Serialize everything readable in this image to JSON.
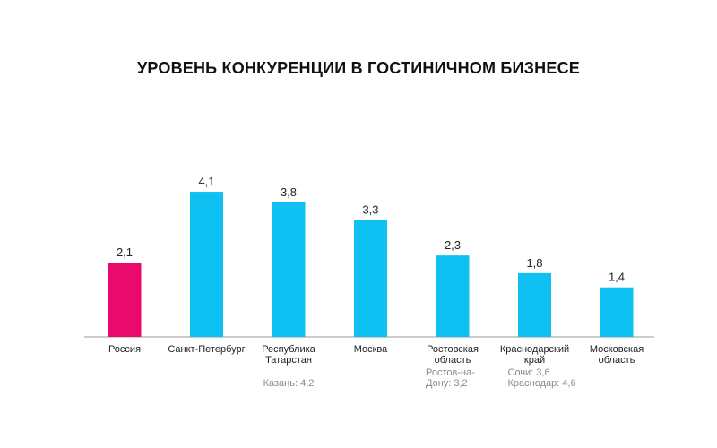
{
  "chart_data": {
    "type": "bar",
    "title": "УРОВЕНЬ КОНКУРЕНЦИИ В ГОСТИНИЧНОМ БИЗНЕСЕ",
    "xlabel": "",
    "ylabel": "",
    "ylim": [
      0,
      5
    ],
    "grid": false,
    "legend": "none",
    "categories": [
      [
        "Россия"
      ],
      [
        "Санкт-Петербург"
      ],
      [
        "Республика",
        "Татарстан"
      ],
      [
        "Москва"
      ],
      [
        "Ростовская",
        "область"
      ],
      [
        "Краснодарский",
        "край"
      ],
      [
        "Московская",
        "область"
      ]
    ],
    "values": [
      2.1,
      4.1,
      3.8,
      3.3,
      2.3,
      1.8,
      1.4
    ],
    "value_labels": [
      "2,1",
      "4,1",
      "3,8",
      "3,3",
      "2,3",
      "1,8",
      "1,4"
    ],
    "notes": [
      [],
      [],
      [
        "Казань: 4,2"
      ],
      [],
      [
        "Ростов-на-",
        "Дону: 3,2"
      ],
      [
        "Сочи: 3,6",
        "Краснодар: 4,6"
      ],
      []
    ],
    "colors": {
      "highlight": "#ea0a6e",
      "bar": "#0fc0f2",
      "axis": "#999999"
    },
    "highlight_index": 0
  }
}
